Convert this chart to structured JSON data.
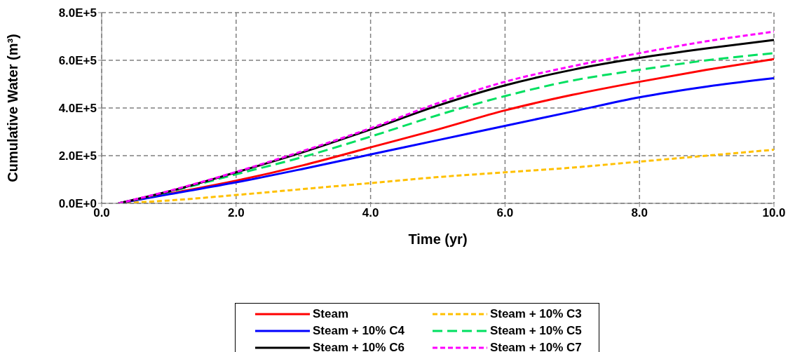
{
  "chart_data": {
    "type": "line",
    "xlabel": "Time (yr)",
    "ylabel": "Cumulative Water (m³)",
    "x": [
      0.25,
      1,
      2,
      3,
      4,
      5,
      6,
      7,
      8,
      9,
      10
    ],
    "series": [
      {
        "name": "Steam",
        "color": "#ff0000",
        "line_style": "solid",
        "values": [
          0,
          40000,
          95000,
          160000,
          235000,
          310000,
          390000,
          455000,
          510000,
          560000,
          605000
        ]
      },
      {
        "name": "Steam + 10% C3",
        "color": "#ffc000",
        "line_style": "dotted",
        "values": [
          0,
          12000,
          35000,
          60000,
          85000,
          110000,
          130000,
          150000,
          175000,
          200000,
          225000
        ]
      },
      {
        "name": "Steam + 10% C4",
        "color": "#0000ff",
        "line_style": "solid",
        "values": [
          0,
          38000,
          88000,
          145000,
          205000,
          265000,
          325000,
          385000,
          445000,
          490000,
          525000
        ]
      },
      {
        "name": "Steam + 10% C5",
        "color": "#00e060",
        "line_style": "dashed",
        "values": [
          0,
          48000,
          122000,
          195000,
          280000,
          370000,
          450000,
          515000,
          560000,
          600000,
          630000
        ]
      },
      {
        "name": "Steam + 10% C6",
        "color": "#000000",
        "line_style": "solid",
        "values": [
          0,
          50000,
          130000,
          215000,
          310000,
          410000,
          495000,
          560000,
          610000,
          650000,
          685000
        ]
      },
      {
        "name": "Steam + 10% C7",
        "color": "#ff00ff",
        "line_style": "dotted",
        "values": [
          0,
          52000,
          132000,
          220000,
          315000,
          420000,
          510000,
          575000,
          630000,
          680000,
          720000
        ]
      }
    ],
    "xlim": [
      0,
      10
    ],
    "xticks": [
      {
        "value": 0,
        "label": "0.0"
      },
      {
        "value": 2,
        "label": "2.0"
      },
      {
        "value": 4,
        "label": "4.0"
      },
      {
        "value": 6,
        "label": "6.0"
      },
      {
        "value": 8,
        "label": "8.0"
      },
      {
        "value": 10,
        "label": "10.0"
      }
    ],
    "ylim": [
      0,
      800000
    ],
    "yticks": [
      {
        "value": 0,
        "label": "0.0E+0"
      },
      {
        "value": 200000,
        "label": "2.0E+5"
      },
      {
        "value": 400000,
        "label": "4.0E+5"
      },
      {
        "value": 600000,
        "label": "6.0E+5"
      },
      {
        "value": 800000,
        "label": "8.0E+5"
      }
    ],
    "grid": true,
    "legend": "bottom",
    "marker": "none"
  }
}
